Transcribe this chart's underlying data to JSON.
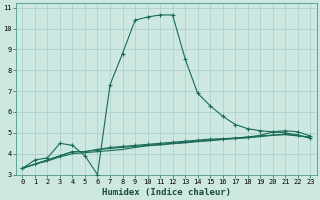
{
  "xlabel": "Humidex (Indice chaleur)",
  "bg_color": "#cce8e0",
  "grid_color": "#aacccc",
  "line_color": "#1a6b5a",
  "xlim": [
    -0.5,
    23.5
  ],
  "ylim": [
    3,
    11.2
  ],
  "xticks": [
    0,
    1,
    2,
    3,
    4,
    5,
    6,
    7,
    8,
    9,
    10,
    11,
    12,
    13,
    14,
    15,
    16,
    17,
    18,
    19,
    20,
    21,
    22,
    23
  ],
  "yticks": [
    3,
    4,
    5,
    6,
    7,
    8,
    9,
    10,
    11
  ],
  "line1_x": [
    0,
    1,
    2,
    3,
    4,
    5,
    6,
    7,
    8,
    9,
    10,
    11,
    12,
    13,
    14,
    15,
    16,
    17,
    18,
    19,
    20,
    21,
    22,
    23
  ],
  "line1_y": [
    3.3,
    3.7,
    3.8,
    4.5,
    4.4,
    3.9,
    3.0,
    7.3,
    8.8,
    10.4,
    10.55,
    10.65,
    10.65,
    8.55,
    6.9,
    6.3,
    5.8,
    5.4,
    5.2,
    5.1,
    5.05,
    5.0,
    4.9,
    4.75
  ],
  "line2_x": [
    0,
    2,
    3,
    4,
    5,
    6,
    7,
    9,
    10,
    11,
    12,
    13,
    14,
    15,
    16,
    17,
    18,
    19,
    20,
    21,
    22,
    23
  ],
  "line2_y": [
    3.3,
    3.7,
    3.9,
    4.1,
    4.1,
    4.2,
    4.25,
    4.35,
    4.4,
    4.45,
    4.5,
    4.55,
    4.6,
    4.65,
    4.7,
    4.75,
    4.8,
    4.85,
    4.9,
    4.92,
    4.85,
    4.8
  ],
  "line3_x": [
    0,
    1,
    2,
    3,
    4,
    5,
    6,
    7,
    8,
    9,
    10,
    11,
    12,
    13,
    14,
    15,
    16,
    17,
    18,
    19,
    20,
    21,
    22,
    23
  ],
  "line3_y": [
    3.3,
    3.5,
    3.7,
    3.9,
    4.1,
    4.1,
    4.2,
    4.3,
    4.35,
    4.4,
    4.45,
    4.5,
    4.55,
    4.6,
    4.65,
    4.7,
    4.72,
    4.75,
    4.8,
    4.88,
    5.05,
    5.1,
    5.05,
    4.85
  ],
  "line4_x": [
    0,
    1,
    2,
    3,
    4,
    5,
    6,
    7,
    8,
    9,
    10,
    11,
    12,
    13,
    14,
    15,
    16,
    17,
    18,
    19,
    20,
    21,
    22,
    23
  ],
  "line4_y": [
    3.3,
    3.5,
    3.65,
    3.85,
    4.0,
    4.05,
    4.1,
    4.15,
    4.2,
    4.3,
    4.38,
    4.42,
    4.48,
    4.52,
    4.58,
    4.62,
    4.68,
    4.72,
    4.76,
    4.82,
    4.88,
    4.92,
    4.88,
    4.75
  ],
  "tick_fontsize": 5.0,
  "xlabel_fontsize": 6.5
}
